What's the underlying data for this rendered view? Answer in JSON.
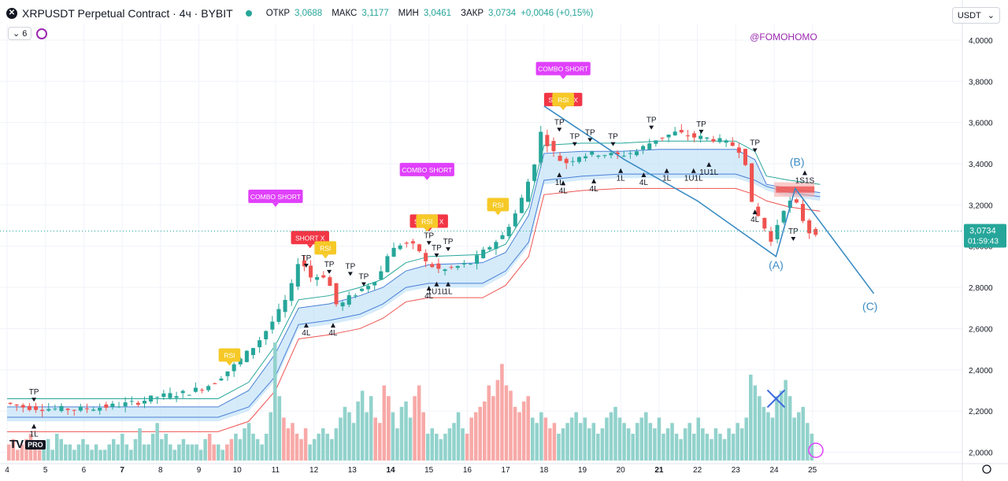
{
  "header": {
    "symbol": "XRPUSDT Perpetual Contract · 4ч · BYBIT",
    "open_label": "ОТКР",
    "open": "3,0688",
    "high_label": "МАКС",
    "high": "3,1177",
    "low_label": "МИН",
    "low": "3,0461",
    "close_label": "ЗАКР",
    "close": "3,0734",
    "change": "+0,0046 (+0,15%)"
  },
  "indicator_count": "6",
  "currency": "USDT",
  "watermark": "@FOMOHOMO",
  "brand": {
    "logo": "TV",
    "badge": "PRO"
  },
  "price_label": {
    "price": "3,0734",
    "timer": "01:59:43"
  },
  "colors": {
    "up": "#26a69a",
    "down": "#ef5350",
    "wave": "#3a8cc4",
    "band": "#bfe0f7",
    "combo": "#e040fb",
    "rsi": "#f6c928",
    "short": "#f23645",
    "vol_up": "#92d2cc",
    "vol_down": "#f7a9a7"
  },
  "chart_data": {
    "type": "candlestick",
    "ylim": [
      1.96,
      4.08
    ],
    "y_ticks": [
      "4,0000",
      "3,8000",
      "3,6000",
      "3,4000",
      "3,2000",
      "3,0000",
      "2,8000",
      "2,6000",
      "2,4000",
      "2,2000",
      "2,0000"
    ],
    "y_tick_values": [
      4.0,
      3.8,
      3.6,
      3.4,
      3.2,
      3.0,
      2.8,
      2.6,
      2.4,
      2.2,
      2.0
    ],
    "x_ticks": [
      "4",
      "5",
      "6",
      "7",
      "8",
      "9",
      "10",
      "11",
      "12",
      "13",
      "14",
      "15",
      "16",
      "17",
      "18",
      "19",
      "20",
      "21",
      "22",
      "23",
      "24",
      "25"
    ],
    "x_tick_days": [
      4,
      5,
      6,
      7,
      8,
      9,
      10,
      11,
      12,
      13,
      14,
      15,
      16,
      17,
      18,
      19,
      20,
      21,
      22,
      23,
      24,
      25
    ],
    "bold_days": [
      7,
      14,
      21
    ],
    "candles_per_day": 6,
    "start_day": 4,
    "close_path": [
      [
        4.0,
        2.24
      ],
      [
        4.5,
        2.22
      ],
      [
        5.3,
        2.21
      ],
      [
        6.0,
        2.21
      ],
      [
        6.6,
        2.22
      ],
      [
        7.4,
        2.24
      ],
      [
        8.0,
        2.27
      ],
      [
        8.8,
        2.29
      ],
      [
        9.4,
        2.33
      ],
      [
        10.0,
        2.42
      ],
      [
        10.6,
        2.53
      ],
      [
        11.1,
        2.66
      ],
      [
        11.45,
        2.77
      ],
      [
        11.7,
        2.95
      ],
      [
        12.0,
        2.85
      ],
      [
        12.4,
        2.86
      ],
      [
        12.7,
        2.7
      ],
      [
        13.0,
        2.75
      ],
      [
        13.4,
        2.8
      ],
      [
        13.8,
        2.86
      ],
      [
        14.0,
        2.96
      ],
      [
        14.4,
        3.02
      ],
      [
        14.8,
        2.99
      ],
      [
        15.0,
        2.92
      ],
      [
        15.4,
        2.88
      ],
      [
        15.8,
        2.9
      ],
      [
        16.2,
        2.92
      ],
      [
        16.6,
        2.99
      ],
      [
        17.0,
        3.05
      ],
      [
        17.4,
        3.18
      ],
      [
        17.8,
        3.38
      ],
      [
        18.0,
        3.55
      ],
      [
        18.3,
        3.46
      ],
      [
        18.6,
        3.4
      ],
      [
        19.0,
        3.44
      ],
      [
        19.5,
        3.45
      ],
      [
        20.0,
        3.44
      ],
      [
        20.5,
        3.46
      ],
      [
        21.0,
        3.52
      ],
      [
        21.5,
        3.55
      ],
      [
        22.0,
        3.53
      ],
      [
        22.5,
        3.52
      ],
      [
        23.0,
        3.49
      ],
      [
        23.3,
        3.45
      ],
      [
        23.5,
        3.2
      ],
      [
        23.8,
        3.1
      ],
      [
        24.0,
        3.02
      ],
      [
        24.3,
        3.18
      ],
      [
        24.6,
        3.23
      ],
      [
        24.8,
        3.14
      ],
      [
        25.0,
        3.07
      ]
    ],
    "volume": [
      3,
      4,
      2,
      3,
      4,
      5,
      3,
      2,
      3,
      4,
      2,
      5,
      4,
      3,
      3,
      2,
      3,
      4,
      3,
      2,
      3,
      2,
      2,
      3,
      4,
      3,
      5,
      3,
      2,
      4,
      6,
      3,
      3,
      5,
      7,
      4,
      5,
      3,
      2,
      3,
      4,
      3,
      3,
      3,
      2,
      4,
      5,
      3,
      3,
      2,
      3,
      4,
      5,
      4,
      6,
      7,
      5,
      4,
      3,
      5,
      9,
      22,
      12,
      8,
      6,
      7,
      5,
      4,
      6,
      3,
      4,
      5,
      6,
      5,
      4,
      6,
      8,
      10,
      9,
      7,
      11,
      13,
      9,
      12,
      8,
      7,
      14,
      12,
      9,
      6,
      10,
      11,
      8,
      12,
      14,
      9,
      5,
      6,
      5,
      4,
      5,
      6,
      7,
      9,
      6,
      5,
      8,
      9,
      10,
      11,
      14,
      12,
      15,
      18,
      14,
      13,
      10,
      9,
      11,
      12,
      8,
      7,
      9,
      8,
      6,
      7,
      5,
      6,
      7,
      8,
      9,
      7,
      8,
      6,
      7,
      5,
      6,
      8,
      9,
      10,
      8,
      7,
      6,
      5,
      7,
      8,
      9,
      7,
      6,
      8,
      5,
      6,
      7,
      5,
      4,
      6,
      7,
      5,
      8,
      6,
      5,
      4,
      6,
      5,
      4,
      6,
      5,
      7,
      6,
      8,
      16,
      14,
      12,
      10,
      9,
      8,
      12,
      13,
      15,
      12,
      8,
      9,
      10,
      7,
      5
    ],
    "upper_band": [
      [
        4,
        2.22
      ],
      [
        9.5,
        2.22
      ],
      [
        10.3,
        2.3
      ],
      [
        11.0,
        2.48
      ],
      [
        11.6,
        2.7
      ],
      [
        12.4,
        2.72
      ],
      [
        13.2,
        2.76
      ],
      [
        13.8,
        2.8
      ],
      [
        14.4,
        2.88
      ],
      [
        15.0,
        2.91
      ],
      [
        16.4,
        2.92
      ],
      [
        17.0,
        2.97
      ],
      [
        17.6,
        3.15
      ],
      [
        18.0,
        3.45
      ],
      [
        19.0,
        3.46
      ],
      [
        20.0,
        3.46
      ],
      [
        21.0,
        3.47
      ],
      [
        23.0,
        3.47
      ],
      [
        23.5,
        3.42
      ],
      [
        23.8,
        3.3
      ],
      [
        24.4,
        3.28
      ],
      [
        25.2,
        3.26
      ]
    ],
    "lower_band": [
      [
        4,
        2.15
      ],
      [
        9.5,
        2.15
      ],
      [
        10.3,
        2.2
      ],
      [
        11.0,
        2.35
      ],
      [
        11.6,
        2.6
      ],
      [
        12.4,
        2.62
      ],
      [
        13.2,
        2.65
      ],
      [
        13.8,
        2.7
      ],
      [
        14.4,
        2.78
      ],
      [
        15.0,
        2.8
      ],
      [
        16.4,
        2.8
      ],
      [
        17.0,
        2.86
      ],
      [
        17.6,
        3.0
      ],
      [
        18.0,
        3.3
      ],
      [
        19.0,
        3.32
      ],
      [
        20.0,
        3.33
      ],
      [
        21.0,
        3.33
      ],
      [
        23.0,
        3.33
      ],
      [
        23.5,
        3.3
      ],
      [
        23.8,
        3.27
      ],
      [
        24.4,
        3.24
      ],
      [
        25.2,
        3.22
      ]
    ],
    "wave_line": [
      [
        18.0,
        3.68
      ],
      [
        20.1,
        3.42
      ],
      [
        22.0,
        3.22
      ],
      [
        24.05,
        2.95
      ],
      [
        24.55,
        3.28
      ],
      [
        26.6,
        2.77
      ]
    ],
    "wave_labels": [
      {
        "text": "(A)",
        "day": 24.05,
        "price": 2.89
      },
      {
        "text": "(B)",
        "day": 24.6,
        "price": 3.39
      },
      {
        "text": "(C)",
        "day": 26.5,
        "price": 2.69
      }
    ],
    "x_mark": {
      "day": 24.05,
      "price": 2.26
    },
    "signals": [
      {
        "text": "COMBO SHORT",
        "kind": "combo",
        "day": 11.0,
        "price": 3.24
      },
      {
        "text": "COMBO SHORT",
        "kind": "combo",
        "day": 14.95,
        "price": 3.37
      },
      {
        "text": "COMBO SHORT",
        "kind": "combo",
        "day": 18.5,
        "price": 3.86
      },
      {
        "text": "SHORT X",
        "kind": "short",
        "day": 11.9,
        "price": 3.04
      },
      {
        "text": "SHORT X",
        "kind": "short",
        "day": 15.0,
        "price": 3.12
      },
      {
        "text": "SHORT X",
        "kind": "short",
        "day": 18.5,
        "price": 3.71
      },
      {
        "text": "RSI",
        "kind": "rsi",
        "day": 12.3,
        "price": 2.99
      },
      {
        "text": "RSI",
        "kind": "rsi",
        "day": 9.8,
        "price": 2.47
      },
      {
        "text": "RSI",
        "kind": "rsi",
        "day": 14.95,
        "price": 3.12
      },
      {
        "text": "RSI",
        "kind": "rsi",
        "day": 16.8,
        "price": 3.2
      },
      {
        "text": "RSI",
        "kind": "rsi",
        "day": 18.5,
        "price": 3.71
      }
    ],
    "tp_labels": [
      {
        "day": 4.7,
        "price": 2.28
      },
      {
        "day": 11.8,
        "price": 2.93
      },
      {
        "day": 12.4,
        "price": 2.9
      },
      {
        "day": 12.95,
        "price": 2.89
      },
      {
        "day": 13.3,
        "price": 2.84
      },
      {
        "day": 15.0,
        "price": 3.04
      },
      {
        "day": 15.2,
        "price": 2.98
      },
      {
        "day": 15.5,
        "price": 3.01
      },
      {
        "day": 18.4,
        "price": 3.59
      },
      {
        "day": 18.8,
        "price": 3.52
      },
      {
        "day": 19.2,
        "price": 3.54
      },
      {
        "day": 19.8,
        "price": 3.52
      },
      {
        "day": 20.8,
        "price": 3.6
      },
      {
        "day": 22.1,
        "price": 3.58
      },
      {
        "day": 23.5,
        "price": 3.49
      },
      {
        "day": 24.5,
        "price": 3.06
      }
    ],
    "l_labels": [
      {
        "text": "1L",
        "day": 4.7,
        "price": 2.1
      },
      {
        "text": "4L",
        "day": 11.8,
        "price": 2.59
      },
      {
        "text": "4L",
        "day": 12.5,
        "price": 2.59
      },
      {
        "text": "4L",
        "day": 15.0,
        "price": 2.77
      },
      {
        "text": "1U1L",
        "day": 15.2,
        "price": 2.79
      },
      {
        "text": "1L",
        "day": 15.5,
        "price": 2.79
      },
      {
        "text": "1L",
        "day": 18.4,
        "price": 3.32
      },
      {
        "text": "4L",
        "day": 18.5,
        "price": 3.28
      },
      {
        "text": "4L",
        "day": 19.3,
        "price": 3.29
      },
      {
        "text": "1L",
        "day": 20.0,
        "price": 3.34
      },
      {
        "text": "4L",
        "day": 20.6,
        "price": 3.32
      },
      {
        "text": "1L",
        "day": 21.2,
        "price": 3.34
      },
      {
        "text": "1U1L",
        "day": 21.9,
        "price": 3.34
      },
      {
        "text": "1U1L",
        "day": 22.3,
        "price": 3.37
      },
      {
        "text": "4L",
        "day": 23.5,
        "price": 3.14
      },
      {
        "text": "1S1S",
        "day": 24.8,
        "price": 3.33
      }
    ]
  }
}
